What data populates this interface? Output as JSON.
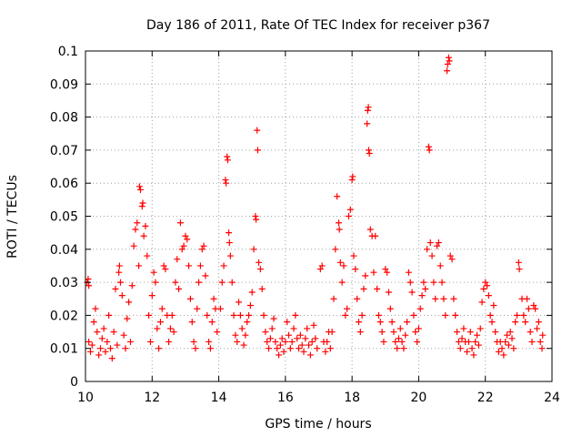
{
  "chart_data": {
    "type": "scatter",
    "title": "Day 186 of 2011, Rate Of TEC Index for receiver p367",
    "xlabel": "GPS time / hours",
    "ylabel": "ROTI / TECUs",
    "xlim": [
      10,
      24
    ],
    "ylim": [
      0,
      0.1
    ],
    "xticks": [
      10,
      12,
      14,
      16,
      18,
      20,
      22,
      24
    ],
    "xtick_labels": [
      "10",
      "12",
      "14",
      "16",
      "18",
      "20",
      "22",
      "24"
    ],
    "yticks": [
      0,
      0.01,
      0.02,
      0.03,
      0.04,
      0.05,
      0.06,
      0.07,
      0.08,
      0.09,
      0.1
    ],
    "ytick_labels": [
      "0",
      "0.01",
      "0.02",
      "0.03",
      "0.04",
      "0.05",
      "0.06",
      "0.07",
      "0.08",
      "0.09",
      "0.1"
    ],
    "grid": true,
    "marker": "+",
    "color": "#ff0000",
    "series": [
      {
        "name": "ROTI",
        "points": [
          [
            10.05,
            0.03
          ],
          [
            10.08,
            0.031
          ],
          [
            10.1,
            0.029
          ],
          [
            10.1,
            0.012
          ],
          [
            10.15,
            0.009
          ],
          [
            10.2,
            0.011
          ],
          [
            10.25,
            0.018
          ],
          [
            10.3,
            0.022
          ],
          [
            10.35,
            0.015
          ],
          [
            10.4,
            0.008
          ],
          [
            10.45,
            0.01
          ],
          [
            10.5,
            0.013
          ],
          [
            10.55,
            0.016
          ],
          [
            10.6,
            0.009
          ],
          [
            10.65,
            0.012
          ],
          [
            10.7,
            0.02
          ],
          [
            10.75,
            0.01
          ],
          [
            10.8,
            0.007
          ],
          [
            10.85,
            0.015
          ],
          [
            10.9,
            0.028
          ],
          [
            10.95,
            0.011
          ],
          [
            11.0,
            0.033
          ],
          [
            11.02,
            0.035
          ],
          [
            11.05,
            0.03
          ],
          [
            11.1,
            0.026
          ],
          [
            11.15,
            0.014
          ],
          [
            11.2,
            0.01
          ],
          [
            11.25,
            0.019
          ],
          [
            11.3,
            0.024
          ],
          [
            11.35,
            0.012
          ],
          [
            11.4,
            0.029
          ],
          [
            11.45,
            0.041
          ],
          [
            11.5,
            0.046
          ],
          [
            11.55,
            0.048
          ],
          [
            11.6,
            0.035
          ],
          [
            11.62,
            0.059
          ],
          [
            11.65,
            0.058
          ],
          [
            11.7,
            0.053
          ],
          [
            11.72,
            0.054
          ],
          [
            11.75,
            0.044
          ],
          [
            11.8,
            0.047
          ],
          [
            11.85,
            0.038
          ],
          [
            11.9,
            0.02
          ],
          [
            11.95,
            0.012
          ],
          [
            12.0,
            0.026
          ],
          [
            12.05,
            0.033
          ],
          [
            12.1,
            0.03
          ],
          [
            12.15,
            0.016
          ],
          [
            12.2,
            0.01
          ],
          [
            12.25,
            0.018
          ],
          [
            12.3,
            0.022
          ],
          [
            12.35,
            0.035
          ],
          [
            12.4,
            0.034
          ],
          [
            12.45,
            0.02
          ],
          [
            12.5,
            0.012
          ],
          [
            12.55,
            0.016
          ],
          [
            12.6,
            0.02
          ],
          [
            12.65,
            0.015
          ],
          [
            12.7,
            0.03
          ],
          [
            12.75,
            0.037
          ],
          [
            12.8,
            0.028
          ],
          [
            12.85,
            0.048
          ],
          [
            12.9,
            0.04
          ],
          [
            12.95,
            0.041
          ],
          [
            13.0,
            0.044
          ],
          [
            13.05,
            0.043
          ],
          [
            13.1,
            0.035
          ],
          [
            13.15,
            0.025
          ],
          [
            13.2,
            0.018
          ],
          [
            13.25,
            0.012
          ],
          [
            13.3,
            0.01
          ],
          [
            13.35,
            0.022
          ],
          [
            13.4,
            0.03
          ],
          [
            13.45,
            0.035
          ],
          [
            13.5,
            0.04
          ],
          [
            13.55,
            0.041
          ],
          [
            13.6,
            0.032
          ],
          [
            13.65,
            0.02
          ],
          [
            13.7,
            0.012
          ],
          [
            13.75,
            0.01
          ],
          [
            13.8,
            0.018
          ],
          [
            13.85,
            0.025
          ],
          [
            13.9,
            0.022
          ],
          [
            13.95,
            0.015
          ],
          [
            14.05,
            0.022
          ],
          [
            14.1,
            0.03
          ],
          [
            14.15,
            0.035
          ],
          [
            14.2,
            0.061
          ],
          [
            14.22,
            0.06
          ],
          [
            14.25,
            0.068
          ],
          [
            14.27,
            0.067
          ],
          [
            14.3,
            0.045
          ],
          [
            14.32,
            0.042
          ],
          [
            14.35,
            0.038
          ],
          [
            14.4,
            0.03
          ],
          [
            14.45,
            0.02
          ],
          [
            14.5,
            0.014
          ],
          [
            14.55,
            0.012
          ],
          [
            14.6,
            0.024
          ],
          [
            14.65,
            0.02
          ],
          [
            14.7,
            0.016
          ],
          [
            14.75,
            0.011
          ],
          [
            14.8,
            0.014
          ],
          [
            14.85,
            0.018
          ],
          [
            14.9,
            0.02
          ],
          [
            14.95,
            0.023
          ],
          [
            15.0,
            0.027
          ],
          [
            15.05,
            0.04
          ],
          [
            15.1,
            0.05
          ],
          [
            15.12,
            0.049
          ],
          [
            15.15,
            0.076
          ],
          [
            15.17,
            0.07
          ],
          [
            15.2,
            0.036
          ],
          [
            15.25,
            0.034
          ],
          [
            15.3,
            0.028
          ],
          [
            15.35,
            0.02
          ],
          [
            15.4,
            0.015
          ],
          [
            15.45,
            0.012
          ],
          [
            15.5,
            0.01
          ],
          [
            15.55,
            0.013
          ],
          [
            15.6,
            0.016
          ],
          [
            15.65,
            0.019
          ],
          [
            15.7,
            0.012
          ],
          [
            15.75,
            0.01
          ],
          [
            15.8,
            0.008
          ],
          [
            15.85,
            0.011
          ],
          [
            15.9,
            0.013
          ],
          [
            15.95,
            0.009
          ],
          [
            16.0,
            0.012
          ],
          [
            16.05,
            0.018
          ],
          [
            16.1,
            0.014
          ],
          [
            16.15,
            0.01
          ],
          [
            16.2,
            0.012
          ],
          [
            16.25,
            0.016
          ],
          [
            16.3,
            0.02
          ],
          [
            16.35,
            0.013
          ],
          [
            16.4,
            0.01
          ],
          [
            16.45,
            0.014
          ],
          [
            16.5,
            0.011
          ],
          [
            16.55,
            0.009
          ],
          [
            16.6,
            0.013
          ],
          [
            16.65,
            0.016
          ],
          [
            16.7,
            0.011
          ],
          [
            16.75,
            0.008
          ],
          [
            16.8,
            0.012
          ],
          [
            16.85,
            0.017
          ],
          [
            16.9,
            0.013
          ],
          [
            16.95,
            0.01
          ],
          [
            17.05,
            0.034
          ],
          [
            17.1,
            0.035
          ],
          [
            17.15,
            0.012
          ],
          [
            17.2,
            0.009
          ],
          [
            17.25,
            0.012
          ],
          [
            17.3,
            0.015
          ],
          [
            17.35,
            0.01
          ],
          [
            17.4,
            0.015
          ],
          [
            17.45,
            0.025
          ],
          [
            17.5,
            0.04
          ],
          [
            17.55,
            0.056
          ],
          [
            17.6,
            0.048
          ],
          [
            17.62,
            0.046
          ],
          [
            17.65,
            0.036
          ],
          [
            17.7,
            0.03
          ],
          [
            17.75,
            0.035
          ],
          [
            17.8,
            0.02
          ],
          [
            17.85,
            0.022
          ],
          [
            17.9,
            0.05
          ],
          [
            17.95,
            0.052
          ],
          [
            18.0,
            0.061
          ],
          [
            18.02,
            0.062
          ],
          [
            18.05,
            0.038
          ],
          [
            18.1,
            0.034
          ],
          [
            18.15,
            0.025
          ],
          [
            18.2,
            0.018
          ],
          [
            18.25,
            0.015
          ],
          [
            18.3,
            0.02
          ],
          [
            18.35,
            0.028
          ],
          [
            18.4,
            0.032
          ],
          [
            18.45,
            0.078
          ],
          [
            18.47,
            0.082
          ],
          [
            18.49,
            0.083
          ],
          [
            18.5,
            0.07
          ],
          [
            18.52,
            0.069
          ],
          [
            18.55,
            0.046
          ],
          [
            18.6,
            0.044
          ],
          [
            18.65,
            0.033
          ],
          [
            18.7,
            0.044
          ],
          [
            18.75,
            0.028
          ],
          [
            18.8,
            0.02
          ],
          [
            18.85,
            0.018
          ],
          [
            18.9,
            0.015
          ],
          [
            18.95,
            0.012
          ],
          [
            19.0,
            0.034
          ],
          [
            19.05,
            0.033
          ],
          [
            19.1,
            0.027
          ],
          [
            19.15,
            0.022
          ],
          [
            19.2,
            0.018
          ],
          [
            19.25,
            0.015
          ],
          [
            19.3,
            0.012
          ],
          [
            19.35,
            0.01
          ],
          [
            19.4,
            0.013
          ],
          [
            19.45,
            0.016
          ],
          [
            19.5,
            0.012
          ],
          [
            19.55,
            0.01
          ],
          [
            19.6,
            0.014
          ],
          [
            19.65,
            0.018
          ],
          [
            19.7,
            0.033
          ],
          [
            19.75,
            0.03
          ],
          [
            19.8,
            0.027
          ],
          [
            19.85,
            0.02
          ],
          [
            19.9,
            0.015
          ],
          [
            19.95,
            0.012
          ],
          [
            20.0,
            0.016
          ],
          [
            20.05,
            0.022
          ],
          [
            20.1,
            0.026
          ],
          [
            20.15,
            0.03
          ],
          [
            20.2,
            0.028
          ],
          [
            20.25,
            0.04
          ],
          [
            20.3,
            0.071
          ],
          [
            20.32,
            0.07
          ],
          [
            20.35,
            0.042
          ],
          [
            20.4,
            0.038
          ],
          [
            20.45,
            0.03
          ],
          [
            20.5,
            0.025
          ],
          [
            20.55,
            0.041
          ],
          [
            20.6,
            0.042
          ],
          [
            20.65,
            0.035
          ],
          [
            20.7,
            0.03
          ],
          [
            20.75,
            0.025
          ],
          [
            20.8,
            0.02
          ],
          [
            20.85,
            0.094
          ],
          [
            20.87,
            0.096
          ],
          [
            20.9,
            0.098
          ],
          [
            20.92,
            0.097
          ],
          [
            20.95,
            0.038
          ],
          [
            21.0,
            0.037
          ],
          [
            21.05,
            0.025
          ],
          [
            21.1,
            0.02
          ],
          [
            21.15,
            0.015
          ],
          [
            21.2,
            0.012
          ],
          [
            21.25,
            0.01
          ],
          [
            21.3,
            0.013
          ],
          [
            21.35,
            0.016
          ],
          [
            21.4,
            0.012
          ],
          [
            21.45,
            0.009
          ],
          [
            21.5,
            0.012
          ],
          [
            21.55,
            0.015
          ],
          [
            21.6,
            0.01
          ],
          [
            21.65,
            0.008
          ],
          [
            21.7,
            0.012
          ],
          [
            21.75,
            0.014
          ],
          [
            21.8,
            0.011
          ],
          [
            21.85,
            0.016
          ],
          [
            21.9,
            0.024
          ],
          [
            21.95,
            0.028
          ],
          [
            22.0,
            0.03
          ],
          [
            22.05,
            0.029
          ],
          [
            22.1,
            0.026
          ],
          [
            22.15,
            0.02
          ],
          [
            22.2,
            0.018
          ],
          [
            22.25,
            0.023
          ],
          [
            22.3,
            0.015
          ],
          [
            22.35,
            0.012
          ],
          [
            22.4,
            0.009
          ],
          [
            22.45,
            0.012
          ],
          [
            22.5,
            0.01
          ],
          [
            22.55,
            0.008
          ],
          [
            22.6,
            0.012
          ],
          [
            22.65,
            0.014
          ],
          [
            22.7,
            0.011
          ],
          [
            22.75,
            0.015
          ],
          [
            22.8,
            0.013
          ],
          [
            22.85,
            0.01
          ],
          [
            22.9,
            0.018
          ],
          [
            22.95,
            0.02
          ],
          [
            23.0,
            0.036
          ],
          [
            23.02,
            0.034
          ],
          [
            23.1,
            0.025
          ],
          [
            23.15,
            0.02
          ],
          [
            23.2,
            0.018
          ],
          [
            23.25,
            0.025
          ],
          [
            23.3,
            0.022
          ],
          [
            23.35,
            0.015
          ],
          [
            23.4,
            0.012
          ],
          [
            23.45,
            0.023
          ],
          [
            23.5,
            0.022
          ],
          [
            23.55,
            0.016
          ],
          [
            23.6,
            0.018
          ],
          [
            23.65,
            0.012
          ],
          [
            23.7,
            0.01
          ],
          [
            23.72,
            0.014
          ]
        ]
      }
    ]
  }
}
